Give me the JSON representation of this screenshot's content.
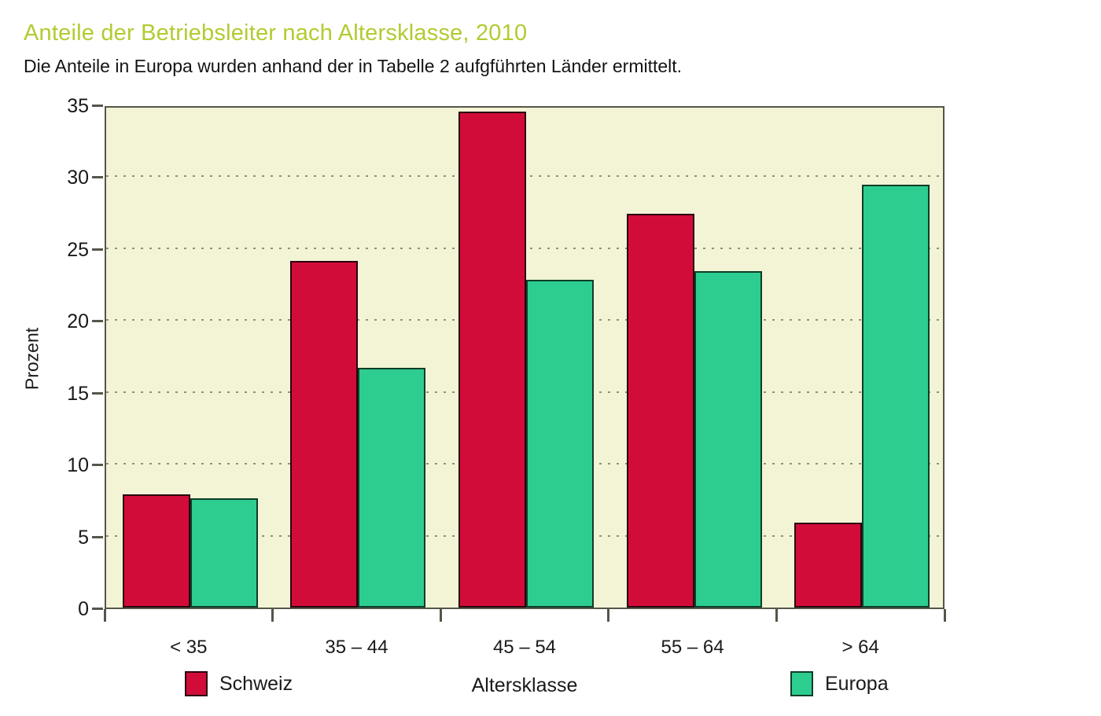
{
  "header": {
    "title": "Anteile der Betriebsleiter nach Altersklasse, 2010",
    "title_color": "#b2cb31",
    "subtitle": "Die Anteile in Europa wurden anhand der in Tabelle 2 aufgführten Länder ermittelt."
  },
  "chart_data": {
    "type": "bar",
    "title": "Anteile der Betriebsleiter nach Altersklasse, 2010",
    "categories": [
      "< 35",
      "35 – 44",
      "45 – 54",
      "55 – 64",
      "> 64"
    ],
    "series": [
      {
        "name": "Schweiz",
        "color": "#d20c38",
        "outline": "#2a020e",
        "values": [
          7.9,
          24.1,
          34.5,
          27.4,
          5.9
        ]
      },
      {
        "name": "Europa",
        "color": "#2dcd90",
        "outline": "#0e3d28",
        "values": [
          7.6,
          16.7,
          22.8,
          23.4,
          29.4
        ]
      }
    ],
    "xlabel": "Altersklasse",
    "ylabel": "Prozent",
    "ylim": [
      0,
      35
    ],
    "yticks": [
      0,
      5,
      10,
      15,
      20,
      25,
      30,
      35
    ],
    "grid": "dotted-horizontal",
    "legend_position": "bottom",
    "plot_background": "#f2f4d5",
    "axis_color": "#55554a"
  }
}
